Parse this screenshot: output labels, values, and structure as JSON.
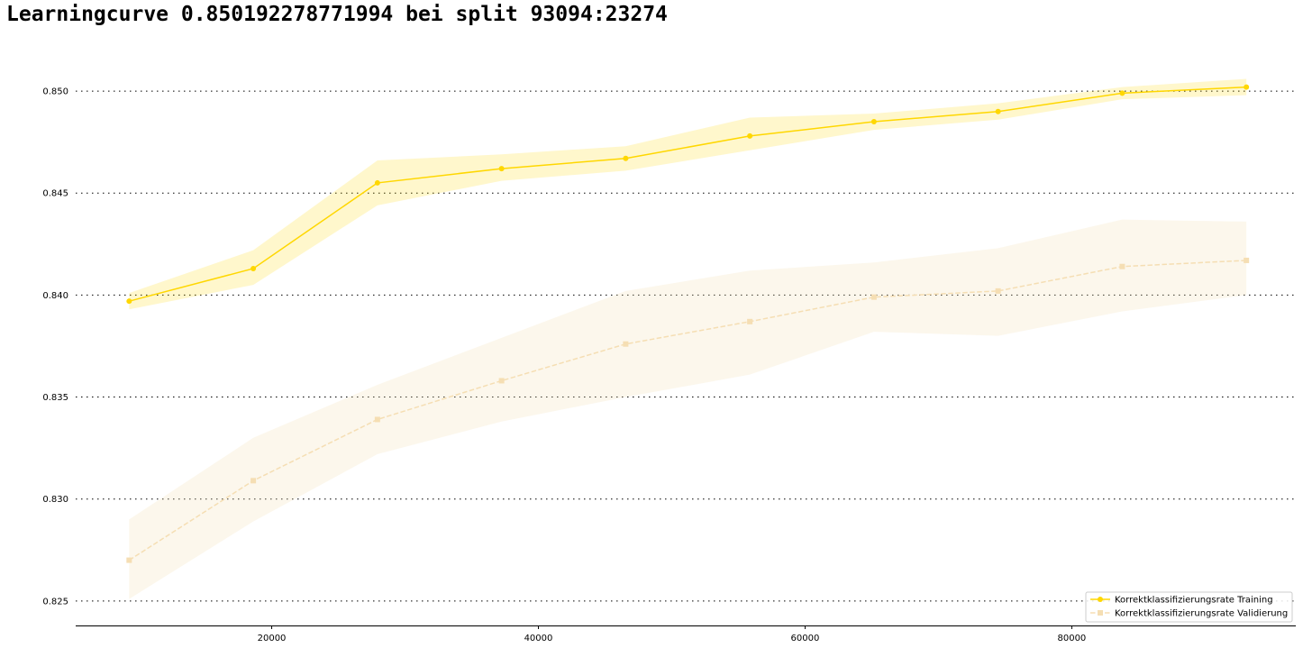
{
  "chart_data": {
    "type": "line",
    "title": "Learningcurve 0.850192278771994 bei split 93094:23274",
    "xlabel": "",
    "ylabel": "",
    "xlim": [
      5300,
      96800
    ],
    "ylim": [
      0.8238,
      0.8527
    ],
    "x_ticks": [
      20000,
      40000,
      60000,
      80000
    ],
    "x_tick_labels": [
      "20000",
      "40000",
      "60000",
      "80000"
    ],
    "y_ticks": [
      0.825,
      0.83,
      0.835,
      0.84,
      0.845,
      0.85
    ],
    "y_tick_labels": [
      "0.825",
      "0.830",
      "0.835",
      "0.840",
      "0.845",
      "0.850"
    ],
    "grid": "horizontal dotted",
    "legend_position": "lower-right",
    "x": [
      9309,
      18619,
      27928,
      37238,
      46547,
      55856,
      65166,
      74475,
      83785,
      93094
    ],
    "series": [
      {
        "name": "Korrektklassifizierungsrate Training",
        "color": "#FFD700",
        "linestyle": "solid",
        "marker": "circle",
        "values": [
          0.8397,
          0.8413,
          0.8455,
          0.8462,
          0.8467,
          0.8478,
          0.8485,
          0.849,
          0.8499,
          0.8502
        ],
        "band_upper": [
          0.8401,
          0.8422,
          0.8466,
          0.8469,
          0.8473,
          0.8487,
          0.8489,
          0.8494,
          0.8502,
          0.8506
        ],
        "band_lower": [
          0.8393,
          0.8405,
          0.8444,
          0.8456,
          0.8461,
          0.8471,
          0.8481,
          0.8486,
          0.8496,
          0.8498
        ]
      },
      {
        "name": "Korrektklassifizierungsrate Validierung",
        "color": "#F5DEB3",
        "linestyle": "dashed",
        "marker": "square",
        "values": [
          0.827,
          0.8309,
          0.8339,
          0.8358,
          0.8376,
          0.8387,
          0.8399,
          0.8402,
          0.8414,
          0.8417
        ],
        "band_upper": [
          0.829,
          0.833,
          0.8356,
          0.8379,
          0.8402,
          0.8412,
          0.8416,
          0.8423,
          0.8437,
          0.8436
        ],
        "band_lower": [
          0.8251,
          0.8289,
          0.8322,
          0.8338,
          0.835,
          0.8361,
          0.8382,
          0.838,
          0.8392,
          0.84
        ]
      }
    ],
    "colors": {
      "training_band": "#FFD700",
      "validation_band": "#F5DEB3",
      "grid": "#000000",
      "axis": "#000000"
    }
  }
}
